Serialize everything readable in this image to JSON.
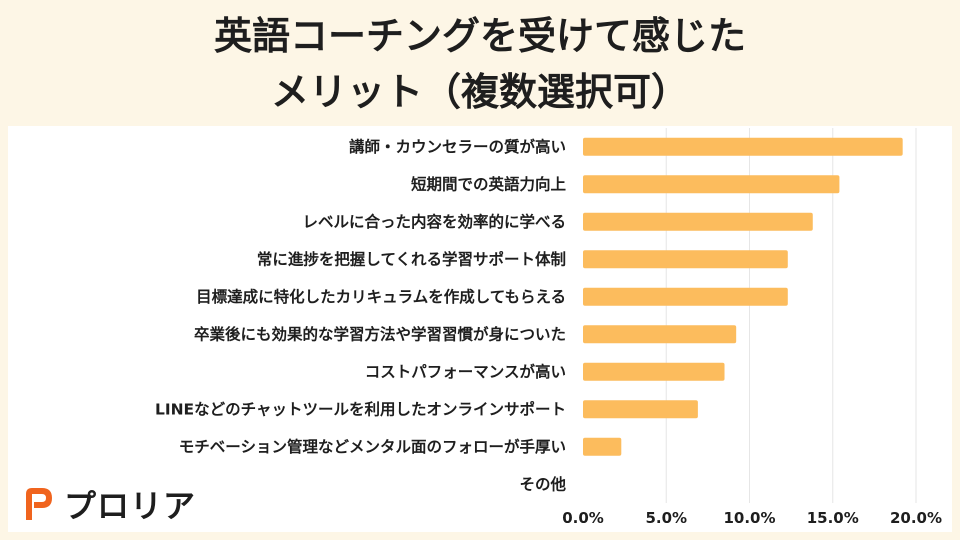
{
  "title": {
    "line1": "英語コーチングを受けて感じた",
    "line2": "メリット（複数選択可）"
  },
  "brand": {
    "name": "プロリア",
    "logo_icon": "proria-logo-icon",
    "logo_color": "#f0641e"
  },
  "colors": {
    "bar": "#fcbc5d",
    "grid": "#e6e6e6",
    "text": "#1e1e1e"
  },
  "chart_data": {
    "type": "bar",
    "orientation": "horizontal",
    "categories": [
      "講師・カウンセラーの質が高い",
      "短期間での英語力向上",
      "レベルに合った内容を効率的に学べる",
      "常に進捗を把握してくれる学習サポート体制",
      "目標達成に特化したカリキュラムを作成してもらえる",
      "卒業後にも効果的な学習方法や学習習慣が身についた",
      "コストパフォーマンスが高い",
      "LINEなどのチャットツールを利用したオンラインサポート",
      "モチベーション管理などメンタル面のフォローが手厚い",
      "その他"
    ],
    "values": [
      19.2,
      15.4,
      13.8,
      12.3,
      12.3,
      9.2,
      8.5,
      6.9,
      2.3,
      0.0
    ],
    "xlim": [
      0,
      20
    ],
    "xticks": [
      0,
      5,
      10,
      15,
      20
    ],
    "xtick_labels": [
      "0.0%",
      "5.0%",
      "10.0%",
      "15.0%",
      "20.0%"
    ],
    "grid": true
  }
}
